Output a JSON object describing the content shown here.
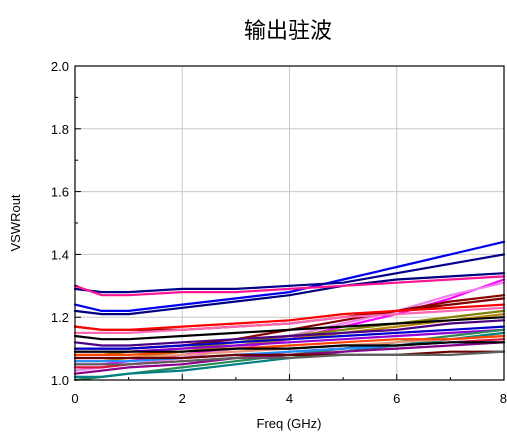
{
  "chart_data": {
    "type": "line",
    "title": "输出驻波",
    "xlabel": "Freq (GHz)",
    "ylabel": "VSWRout",
    "xlim": [
      0,
      8
    ],
    "ylim": [
      1.0,
      2.0
    ],
    "x_ticks": [
      "0",
      "2",
      "4",
      "6",
      "8"
    ],
    "y_ticks": [
      "1.0",
      "1.2",
      "1.4",
      "1.6",
      "1.8",
      "2.0"
    ],
    "grid": true,
    "legend": "none",
    "x": [
      0,
      0.5,
      1,
      2,
      3,
      4,
      5,
      6,
      7,
      8
    ],
    "series": [
      {
        "color": "#0000ee",
        "values": [
          1.24,
          1.22,
          1.22,
          1.24,
          1.26,
          1.28,
          1.32,
          1.36,
          1.4,
          1.44
        ]
      },
      {
        "color": "#00008b",
        "values": [
          1.29,
          1.28,
          1.28,
          1.29,
          1.29,
          1.3,
          1.31,
          1.34,
          1.37,
          1.4
        ]
      },
      {
        "color": "#000080",
        "values": [
          1.22,
          1.21,
          1.21,
          1.23,
          1.25,
          1.27,
          1.3,
          1.32,
          1.33,
          1.34
        ]
      },
      {
        "color": "#ff1493",
        "values": [
          1.3,
          1.27,
          1.27,
          1.28,
          1.28,
          1.29,
          1.3,
          1.31,
          1.32,
          1.33
        ]
      },
      {
        "color": "#ff00ff",
        "values": [
          1.05,
          1.05,
          1.06,
          1.08,
          1.1,
          1.13,
          1.17,
          1.21,
          1.26,
          1.32
        ]
      },
      {
        "color": "#ee82ee",
        "values": [
          1.03,
          1.04,
          1.05,
          1.07,
          1.1,
          1.14,
          1.18,
          1.22,
          1.27,
          1.31
        ]
      },
      {
        "color": "#8b0000",
        "values": [
          1.1,
          1.1,
          1.1,
          1.11,
          1.13,
          1.16,
          1.19,
          1.22,
          1.25,
          1.27
        ]
      },
      {
        "color": "#800000",
        "values": [
          1.17,
          1.16,
          1.16,
          1.16,
          1.17,
          1.18,
          1.2,
          1.22,
          1.24,
          1.26
        ]
      },
      {
        "color": "#ff0000",
        "values": [
          1.17,
          1.16,
          1.16,
          1.17,
          1.18,
          1.19,
          1.21,
          1.22,
          1.23,
          1.24
        ]
      },
      {
        "color": "#ff69b4",
        "values": [
          1.15,
          1.15,
          1.15,
          1.16,
          1.17,
          1.18,
          1.2,
          1.21,
          1.22,
          1.23
        ]
      },
      {
        "color": "#808000",
        "values": [
          1.08,
          1.08,
          1.09,
          1.1,
          1.12,
          1.14,
          1.16,
          1.18,
          1.2,
          1.22
        ]
      },
      {
        "color": "#b8860b",
        "values": [
          1.06,
          1.06,
          1.07,
          1.09,
          1.11,
          1.13,
          1.15,
          1.17,
          1.19,
          1.21
        ]
      },
      {
        "color": "#000000",
        "values": [
          1.14,
          1.13,
          1.13,
          1.14,
          1.15,
          1.16,
          1.17,
          1.18,
          1.19,
          1.2
        ]
      },
      {
        "color": "#4b0082",
        "values": [
          1.12,
          1.11,
          1.11,
          1.12,
          1.13,
          1.14,
          1.15,
          1.16,
          1.18,
          1.19
        ]
      },
      {
        "color": "#0000cd",
        "values": [
          1.1,
          1.1,
          1.1,
          1.11,
          1.12,
          1.13,
          1.14,
          1.15,
          1.16,
          1.17
        ]
      },
      {
        "color": "#9400d3",
        "values": [
          1.09,
          1.09,
          1.09,
          1.1,
          1.11,
          1.12,
          1.13,
          1.14,
          1.15,
          1.16
        ]
      },
      {
        "color": "#2e8b57",
        "values": [
          1.0,
          1.01,
          1.02,
          1.04,
          1.06,
          1.08,
          1.1,
          1.12,
          1.14,
          1.16
        ]
      },
      {
        "color": "#008080",
        "values": [
          1.01,
          1.01,
          1.02,
          1.03,
          1.05,
          1.07,
          1.09,
          1.11,
          1.13,
          1.15
        ]
      },
      {
        "color": "#e9967a",
        "values": [
          1.07,
          1.07,
          1.07,
          1.08,
          1.09,
          1.1,
          1.11,
          1.12,
          1.13,
          1.14
        ]
      },
      {
        "color": "#ff4500",
        "values": [
          1.08,
          1.08,
          1.08,
          1.09,
          1.1,
          1.11,
          1.12,
          1.13,
          1.13,
          1.14
        ]
      },
      {
        "color": "#dc143c",
        "values": [
          1.04,
          1.04,
          1.05,
          1.06,
          1.07,
          1.09,
          1.1,
          1.11,
          1.12,
          1.13
        ]
      },
      {
        "color": "#1e90ff",
        "values": [
          1.06,
          1.06,
          1.06,
          1.07,
          1.08,
          1.09,
          1.1,
          1.11,
          1.12,
          1.12
        ]
      },
      {
        "color": "#8b008b",
        "values": [
          1.02,
          1.03,
          1.04,
          1.05,
          1.07,
          1.08,
          1.09,
          1.1,
          1.11,
          1.12
        ]
      },
      {
        "color": "#000000",
        "values": [
          1.09,
          1.09,
          1.09,
          1.09,
          1.1,
          1.1,
          1.11,
          1.11,
          1.12,
          1.12
        ]
      },
      {
        "color": "#6a0000",
        "values": [
          1.07,
          1.07,
          1.07,
          1.07,
          1.08,
          1.08,
          1.08,
          1.08,
          1.09,
          1.09
        ]
      },
      {
        "color": "#5f5f5f",
        "values": [
          1.05,
          1.05,
          1.05,
          1.06,
          1.07,
          1.07,
          1.08,
          1.08,
          1.08,
          1.09
        ]
      }
    ]
  }
}
